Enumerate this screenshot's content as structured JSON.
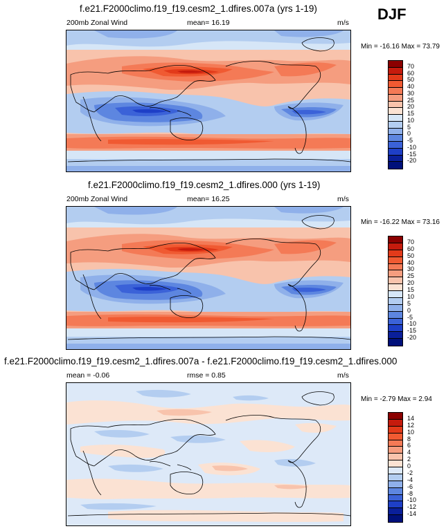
{
  "season": "DJF",
  "panels": [
    {
      "title": "f.e21.F2000climo.f19_f19.cesm2_1.dfires.007a (yrs 1-19)",
      "left_label": "200mb Zonal Wind",
      "mid_label": "mean=  16.19",
      "units": "m/s",
      "minmax": "Min = -16.16 Max =  73.79",
      "levels": [
        "70",
        "60",
        "50",
        "40",
        "30",
        "25",
        "20",
        "15",
        "10",
        "5",
        "0",
        "-5",
        "-10",
        "-15",
        "-20"
      ],
      "colors": [
        "#8b0000",
        "#c51b0d",
        "#e23a1a",
        "#f05a32",
        "#f47a56",
        "#f59d7f",
        "#f8c3ac",
        "#fbe2d3",
        "#d6e6f7",
        "#b3cdf0",
        "#8fb0ea",
        "#5d86e0",
        "#3b62d8",
        "#1e3fc7",
        "#0a1f9a",
        "#00107a"
      ]
    },
    {
      "title": "f.e21.F2000climo.f19_f19.cesm2_1.dfires.000 (yrs 1-19)",
      "left_label": "200mb Zonal Wind",
      "mid_label": "mean=  16.25",
      "units": "m/s",
      "minmax": "Min = -16.22 Max =  73.16",
      "levels": [
        "70",
        "60",
        "50",
        "40",
        "30",
        "25",
        "20",
        "15",
        "10",
        "5",
        "0",
        "-5",
        "-10",
        "-15",
        "-20"
      ],
      "colors": [
        "#8b0000",
        "#c51b0d",
        "#e23a1a",
        "#f05a32",
        "#f47a56",
        "#f59d7f",
        "#f8c3ac",
        "#fbe2d3",
        "#d6e6f7",
        "#b3cdf0",
        "#8fb0ea",
        "#5d86e0",
        "#3b62d8",
        "#1e3fc7",
        "#0a1f9a",
        "#00107a"
      ]
    },
    {
      "title": "f.e21.F2000climo.f19_f19.cesm2_1.dfires.007a - f.e21.F2000climo.f19_f19.cesm2_1.dfires.000",
      "left_label": "mean =  -0.06",
      "mid_label": "rmse =  0.85",
      "units": "m/s",
      "minmax": "Min =  -2.79 Max =   2.94",
      "levels": [
        "14",
        "12",
        "10",
        "8",
        "6",
        "4",
        "2",
        "0",
        "-2",
        "-4",
        "-6",
        "-8",
        "-10",
        "-12",
        "-14"
      ],
      "colors": [
        "#8b0000",
        "#c51b0d",
        "#e23a1a",
        "#f05a32",
        "#f47a56",
        "#f59d7f",
        "#f8c3ac",
        "#fbe2d3",
        "#dde9f8",
        "#b3cdf0",
        "#8fb0ea",
        "#5d86e0",
        "#3b62d8",
        "#1e3fc7",
        "#0a1f9a",
        "#00107a"
      ]
    }
  ]
}
